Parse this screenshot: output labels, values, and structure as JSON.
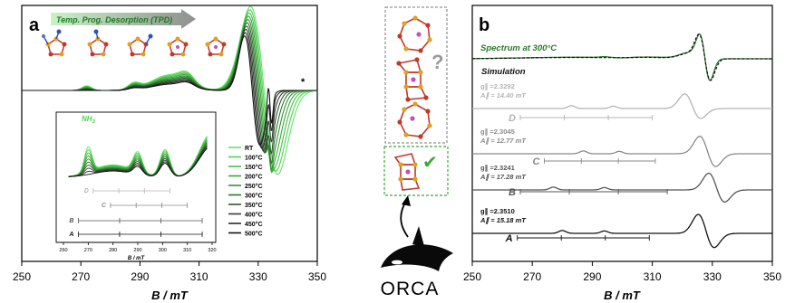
{
  "panel_a": {
    "label": "a",
    "tpd_label": "Temp. Prog. Desorption (TPD)",
    "asterisk": "*",
    "inset_label": "NH",
    "inset_label_sub": "3",
    "inset_sites": [
      "D",
      "C",
      "B",
      "A"
    ],
    "legend": [
      "RT",
      "100°C",
      "150°C",
      "200°C",
      "250°C",
      "300°C",
      "350°C",
      "400°C",
      "450°C",
      "500°C"
    ],
    "legend_colors": [
      "#5fe65f",
      "#4fd24f",
      "#45c045",
      "#3aa83a",
      "#339033",
      "#2a7a2a",
      "#2f552f",
      "#343d34",
      "#2a2a2a",
      "#111111"
    ]
  },
  "panel_b": {
    "label": "b",
    "spectrum_label": "Spectrum at 300°C",
    "simulation_label": "Simulation",
    "question_mark": "?",
    "check_mark": "✔",
    "orca_label": "ORCA",
    "sites": [
      {
        "letter": "D",
        "g_label": "g∥ =2.3292",
        "a_label": "A∥ = 14.40 mT",
        "color": "#b4b4b4"
      },
      {
        "letter": "C",
        "g_label": "g∥ =2.3045",
        "a_label": "A∥ = 12.77 mT",
        "color": "#8a8a8a"
      },
      {
        "letter": "B",
        "g_label": "g∥ =2.3241",
        "a_label": "A∥ = 17.28 mT",
        "color": "#555555"
      },
      {
        "letter": "A",
        "g_label": "g∥ =2.3510",
        "a_label": "A∥ = 15.18 mT",
        "color": "#111111"
      }
    ]
  },
  "chart_data": [
    {
      "type": "line",
      "title": "",
      "xlabel": "B / mT",
      "ylabel": "",
      "xlim": [
        250,
        350
      ],
      "x_ticks": [
        250,
        270,
        290,
        310,
        330,
        350
      ],
      "series": [
        {
          "name": "RT"
        },
        {
          "name": "100°C"
        },
        {
          "name": "150°C"
        },
        {
          "name": "200°C"
        },
        {
          "name": "250°C"
        },
        {
          "name": "300°C"
        },
        {
          "name": "350°C"
        },
        {
          "name": "400°C"
        },
        {
          "name": "450°C"
        },
        {
          "name": "500°C"
        }
      ],
      "inset": {
        "xlabel": "B / mT",
        "xlim": [
          260,
          320
        ],
        "x_ticks": [
          260,
          270,
          280,
          290,
          300,
          310,
          320
        ],
        "series_label": "NH3"
      }
    },
    {
      "type": "line",
      "title": "",
      "xlabel": "B / mT",
      "ylabel": "",
      "xlim": [
        250,
        350
      ],
      "x_ticks": [
        250,
        270,
        290,
        310,
        330,
        350
      ],
      "series": [
        {
          "name": "Spectrum at 300°C"
        },
        {
          "name": "Simulation"
        },
        {
          "name": "D"
        },
        {
          "name": "C"
        },
        {
          "name": "B"
        },
        {
          "name": "A"
        }
      ]
    }
  ]
}
